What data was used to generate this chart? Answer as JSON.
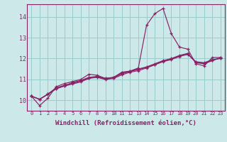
{
  "background_color": "#cce8e8",
  "grid_color": "#99cccc",
  "line_color": "#882266",
  "marker": "+",
  "xlabel": "Windchill (Refroidissement éolien,°C)",
  "xlabel_fontsize": 6.5,
  "ylabel_ticks": [
    10,
    11,
    12,
    13,
    14
  ],
  "xticks": [
    0,
    1,
    2,
    3,
    4,
    5,
    6,
    7,
    8,
    9,
    10,
    11,
    12,
    13,
    14,
    15,
    16,
    17,
    18,
    19,
    20,
    21,
    22,
    23
  ],
  "xlim": [
    -0.5,
    23.5
  ],
  "ylim": [
    9.5,
    14.6
  ],
  "series": [
    [
      10.2,
      9.75,
      10.1,
      10.65,
      10.8,
      10.9,
      11.0,
      11.25,
      11.2,
      11.05,
      11.1,
      11.35,
      11.4,
      11.55,
      13.6,
      14.15,
      14.4,
      13.2,
      12.55,
      12.45,
      11.75,
      11.65,
      12.05,
      12.05
    ],
    [
      10.2,
      10.05,
      10.3,
      10.55,
      10.7,
      10.85,
      10.95,
      11.1,
      11.15,
      11.05,
      11.1,
      11.3,
      11.4,
      11.5,
      11.6,
      11.75,
      11.9,
      12.0,
      12.15,
      12.25,
      11.8,
      11.75,
      11.9,
      12.05
    ],
    [
      10.2,
      10.05,
      10.3,
      10.6,
      10.72,
      10.82,
      10.92,
      11.08,
      11.12,
      11.02,
      11.08,
      11.28,
      11.38,
      11.48,
      11.58,
      11.72,
      11.88,
      11.98,
      12.12,
      12.22,
      11.82,
      11.78,
      11.92,
      12.02
    ],
    [
      10.2,
      10.05,
      10.28,
      10.55,
      10.68,
      10.78,
      10.88,
      11.05,
      11.1,
      11.0,
      11.05,
      11.22,
      11.35,
      11.42,
      11.55,
      11.7,
      11.85,
      11.95,
      12.1,
      12.2,
      11.85,
      11.8,
      11.95,
      12.0
    ]
  ]
}
